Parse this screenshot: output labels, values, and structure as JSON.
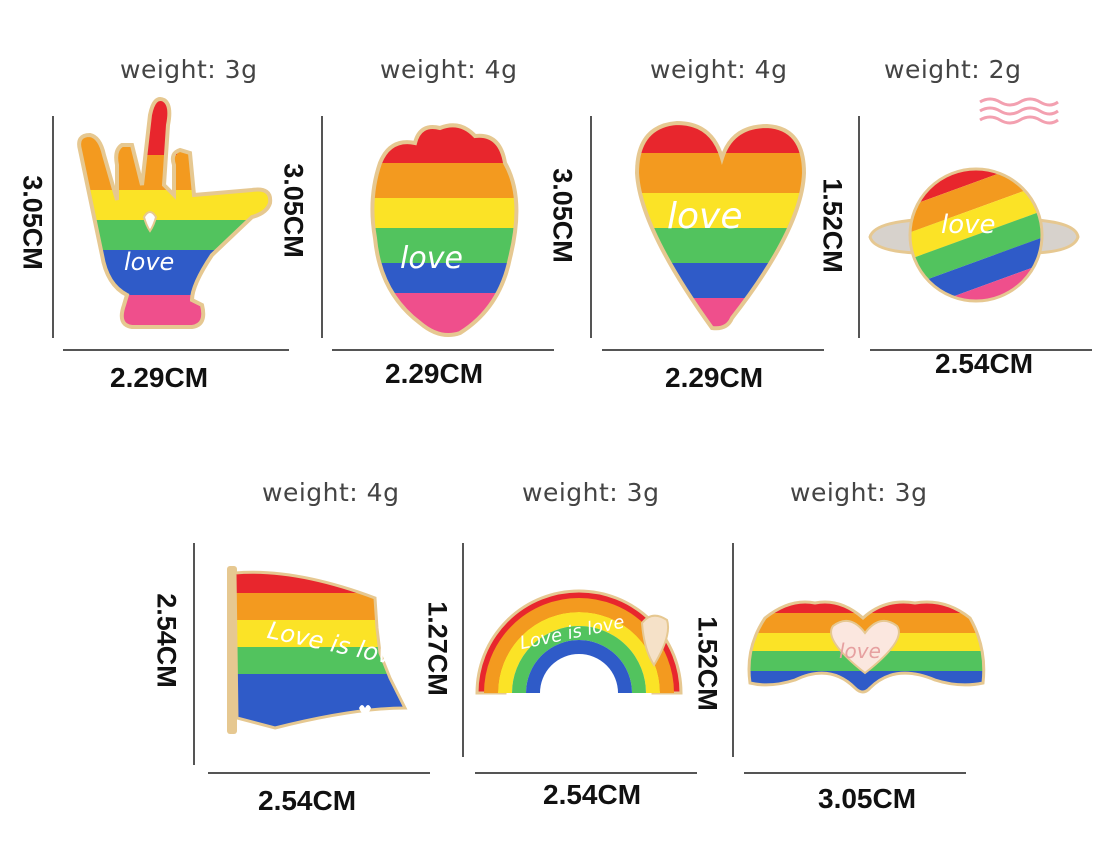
{
  "pins": [
    {
      "id": "hand-sign",
      "weight": "weight: 3g",
      "height": "3.05CM",
      "width": "2.29CM",
      "text": "love"
    },
    {
      "id": "heart-organ",
      "weight": "weight: 4g",
      "height": "3.05CM",
      "width": "2.29CM",
      "text": "love"
    },
    {
      "id": "heart",
      "weight": "weight: 4g",
      "height": "3.05CM",
      "width": "2.29CM",
      "text": "love"
    },
    {
      "id": "planet",
      "weight": "weight: 2g",
      "height": "1.52CM",
      "width": "2.54CM",
      "text": "love"
    },
    {
      "id": "flag",
      "weight": "weight: 4g",
      "height": "2.54CM",
      "width": "2.54CM",
      "text": "Love is love"
    },
    {
      "id": "rainbow",
      "weight": "weight: 3g",
      "height": "1.27CM",
      "width": "2.54CM",
      "text": "Love is love"
    },
    {
      "id": "heart-hands",
      "weight": "weight: 3g",
      "height": "1.52CM",
      "width": "3.05CM",
      "text": "love"
    }
  ],
  "colors": {
    "red": "#e8262d",
    "orange": "#f39a1f",
    "yellow": "#fbe326",
    "green": "#52c35e",
    "blue": "#2f5bc8",
    "pink": "#ef4f8c",
    "gold": "#e6c891"
  }
}
